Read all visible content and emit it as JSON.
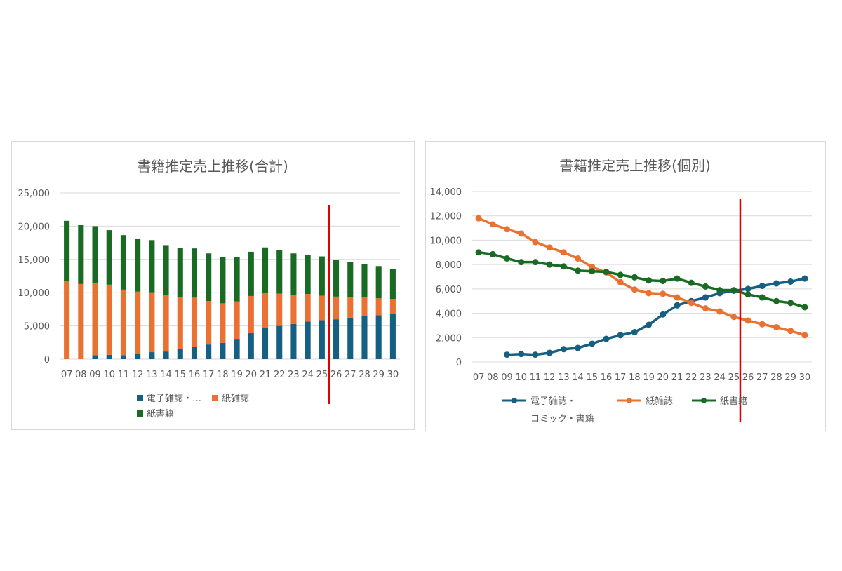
{
  "colors": {
    "digital": "#156082",
    "magazine": "#e97132",
    "book": "#196b24",
    "marker_line": "#e00000",
    "grid": "#d9d9d9"
  },
  "chart_data": [
    {
      "type": "bar",
      "stacked": true,
      "title": "書籍推定売上推移(合計)",
      "categories": [
        "07",
        "08",
        "09",
        "10",
        "11",
        "12",
        "13",
        "14",
        "15",
        "16",
        "17",
        "18",
        "19",
        "20",
        "21",
        "22",
        "23",
        "24",
        "25",
        "26",
        "27",
        "28",
        "29",
        "30"
      ],
      "ylim": [
        0,
        25000
      ],
      "yticks": [
        "0",
        "5,000",
        "10,000",
        "15,000",
        "20,000",
        "25,000"
      ],
      "ytick_values": [
        0,
        5000,
        10000,
        15000,
        20000,
        25000
      ],
      "grid": true,
      "legend_position": "bottom",
      "legend_labels": [
        "電子雑誌・…",
        "紙雑誌",
        "紙書籍"
      ],
      "vertical_marker_between": [
        "25",
        "26"
      ],
      "series": [
        {
          "name": "電子雑誌・コミック・書籍",
          "color_key": "digital",
          "values": [
            0,
            0,
            600,
            650,
            600,
            750,
            1050,
            1150,
            1500,
            1900,
            2200,
            2450,
            3050,
            3900,
            4650,
            5000,
            5300,
            5650,
            5850,
            6000,
            6250,
            6450,
            6600,
            6850
          ]
        },
        {
          "name": "紙雑誌",
          "color_key": "magazine",
          "values": [
            11800,
            11300,
            10900,
            10550,
            9850,
            9400,
            9000,
            8500,
            7800,
            7350,
            6550,
            5950,
            5650,
            5600,
            5300,
            4850,
            4400,
            4150,
            3700,
            3400,
            3100,
            2850,
            2550,
            2200
          ]
        },
        {
          "name": "紙書籍",
          "color_key": "book",
          "values": [
            9000,
            8850,
            8500,
            8200,
            8200,
            8000,
            7850,
            7500,
            7450,
            7400,
            7150,
            6950,
            6700,
            6650,
            6850,
            6500,
            6200,
            5900,
            5900,
            5550,
            5300,
            5000,
            4850,
            4500
          ]
        }
      ]
    },
    {
      "type": "line",
      "title": "書籍推定売上推移(個別)",
      "categories": [
        "07",
        "08",
        "09",
        "10",
        "11",
        "12",
        "13",
        "14",
        "15",
        "16",
        "17",
        "18",
        "19",
        "20",
        "21",
        "22",
        "23",
        "24",
        "25",
        "26",
        "27",
        "28",
        "29",
        "30"
      ],
      "ylim": [
        0,
        14000
      ],
      "yticks": [
        "0",
        "2,000",
        "4,000",
        "6,000",
        "8,000",
        "10,000",
        "12,000",
        "14,000"
      ],
      "ytick_values": [
        0,
        2000,
        4000,
        6000,
        8000,
        10000,
        12000,
        14000
      ],
      "grid": true,
      "legend_position": "bottom",
      "legend_labels": [
        "電子雑誌・",
        "紙雑誌",
        "紙書籍"
      ],
      "legend_label_continuation": "コミック・書籍",
      "vertical_marker_between": [
        "25",
        "26"
      ],
      "series": [
        {
          "name": "電子雑誌・コミック・書籍",
          "color_key": "digital",
          "values": [
            null,
            null,
            600,
            650,
            600,
            750,
            1050,
            1150,
            1500,
            1900,
            2200,
            2450,
            3050,
            3900,
            4650,
            5000,
            5300,
            5650,
            5850,
            6000,
            6250,
            6450,
            6600,
            6850
          ]
        },
        {
          "name": "紙雑誌",
          "color_key": "magazine",
          "values": [
            11800,
            11300,
            10900,
            10550,
            9850,
            9400,
            9000,
            8500,
            7800,
            7350,
            6550,
            5950,
            5650,
            5600,
            5300,
            4850,
            4400,
            4150,
            3700,
            3400,
            3100,
            2850,
            2550,
            2200
          ]
        },
        {
          "name": "紙書籍",
          "color_key": "book",
          "values": [
            9000,
            8850,
            8500,
            8200,
            8200,
            8000,
            7850,
            7500,
            7450,
            7400,
            7150,
            6950,
            6700,
            6650,
            6850,
            6500,
            6200,
            5900,
            5900,
            5550,
            5300,
            5000,
            4850,
            4500
          ]
        }
      ]
    }
  ]
}
